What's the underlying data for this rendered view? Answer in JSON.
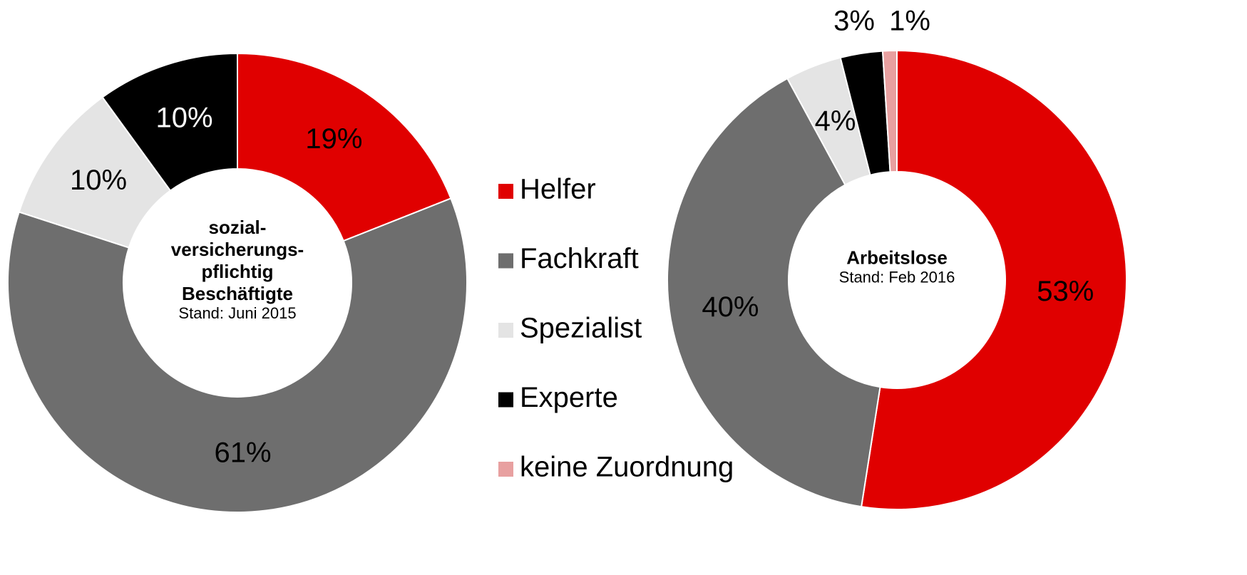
{
  "chart_data": [
    {
      "type": "pie",
      "donut": true,
      "values": [
        19,
        61,
        10,
        10
      ],
      "title_lines": [
        "sozial-",
        "versicherungs-",
        "pflichtig",
        "Beschäftigte"
      ],
      "subtitle": "Stand: Juni 2015"
    },
    {
      "type": "pie",
      "donut": true,
      "values": [
        53,
        40,
        4,
        3,
        1
      ],
      "title_lines": [
        "Arbeitslose"
      ],
      "subtitle": "Stand: Feb 2016"
    }
  ],
  "value_labels": [
    [
      "19%",
      "61%",
      "10%",
      "10%"
    ],
    [
      "53%",
      "40%",
      "4%",
      "3%",
      "1%"
    ]
  ],
  "legend": {
    "categories": [
      "Helfer",
      "Fachkraft",
      "Spezialist",
      "Experte",
      "keine Zuordnung"
    ],
    "colors": [
      "#e00000",
      "#6e6e6e",
      "#e4e4e4",
      "#000000",
      "#e8a0a0"
    ]
  }
}
